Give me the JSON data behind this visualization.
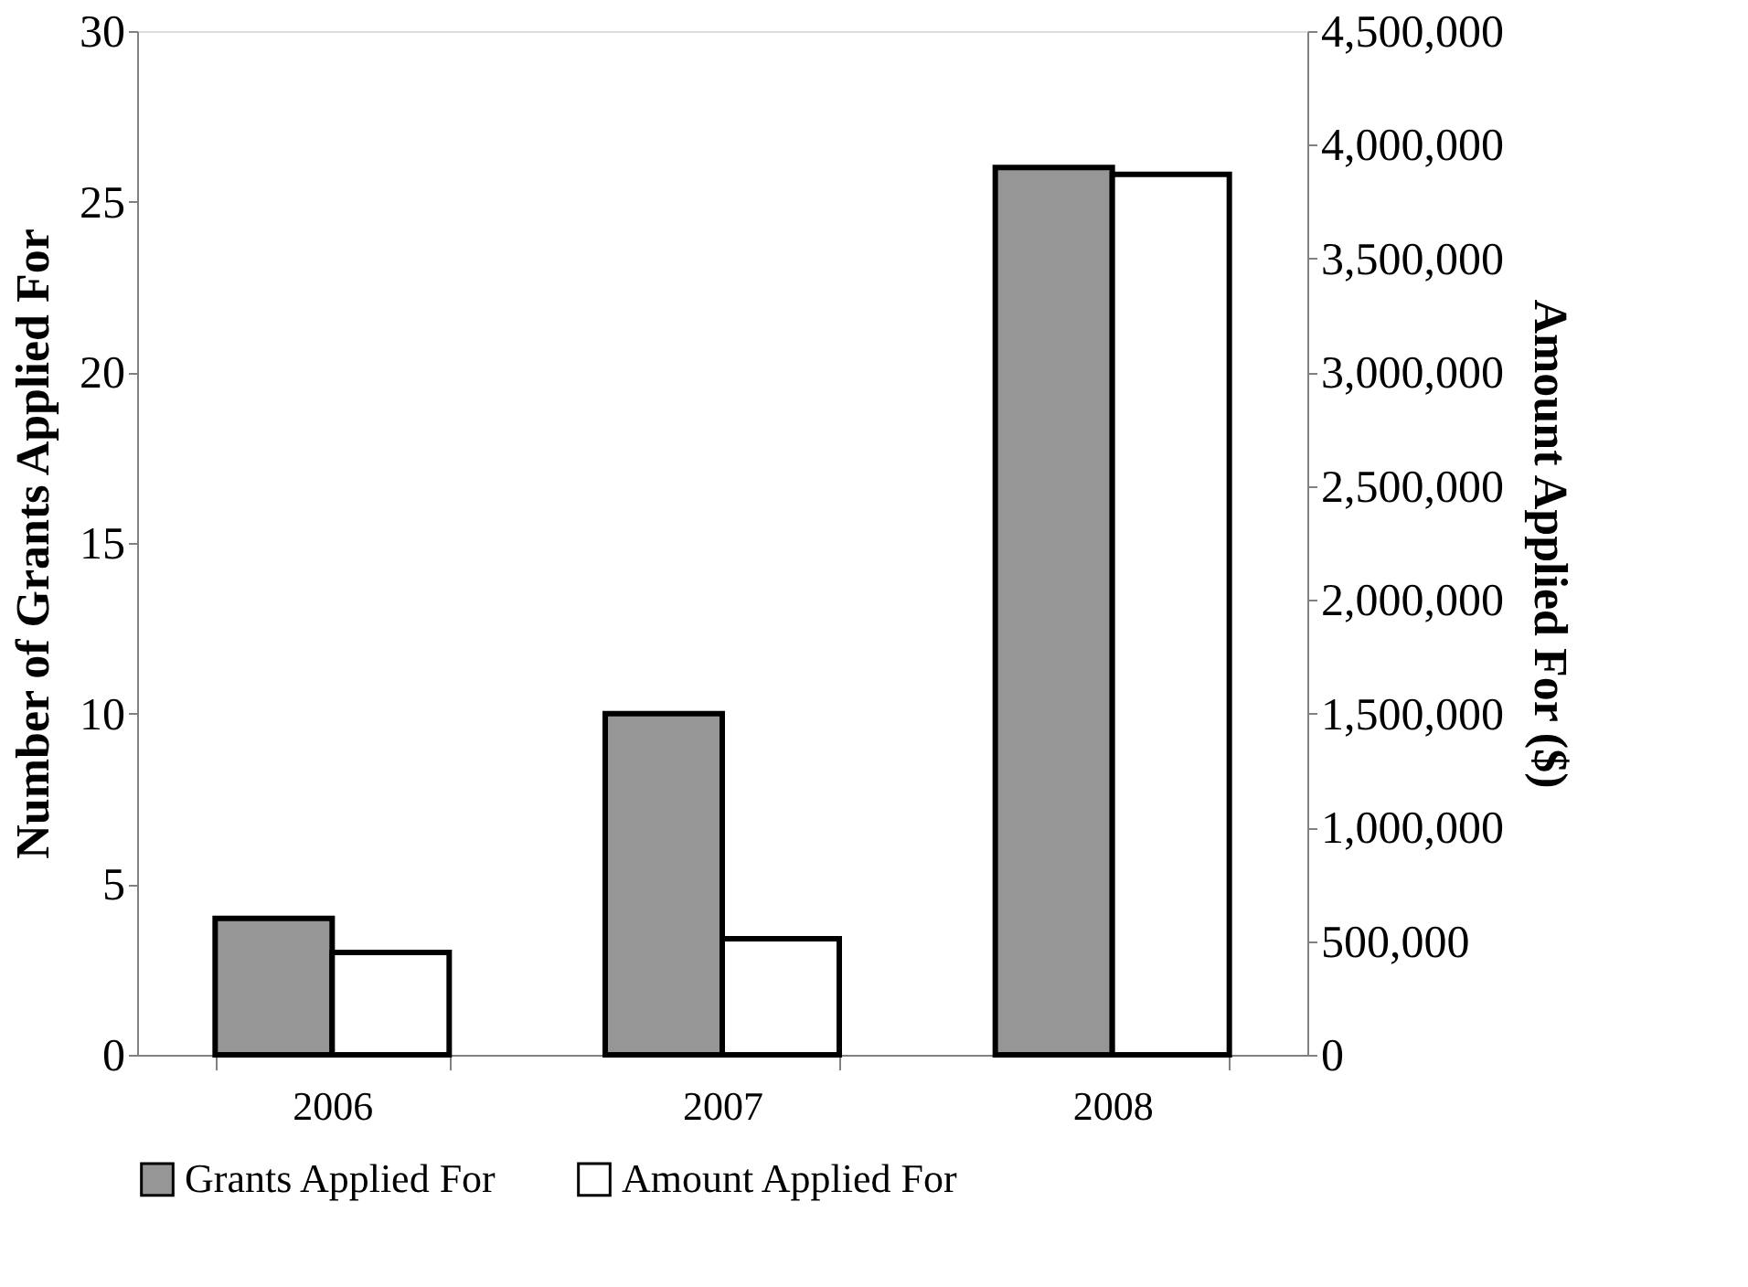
{
  "chart_data": {
    "type": "bar",
    "categories": [
      "2006",
      "2007",
      "2008"
    ],
    "series": [
      {
        "name": "Grants Applied For",
        "color": "#969696",
        "values": [
          4,
          10,
          26
        ]
      },
      {
        "name": "Amount Applied For",
        "color": "#ffffff",
        "values": [
          450000,
          510000,
          3870000
        ],
        "axis": "y2"
      }
    ],
    "ylabel": "Number of Grants Applied For",
    "y2label": "Amount Applied For ($)",
    "ylim": [
      0,
      30
    ],
    "yticks": [
      0,
      5,
      10,
      15,
      20,
      25,
      30
    ],
    "y2lim": [
      0,
      4500000
    ],
    "y2ticks": [
      0,
      {
        "value": 500000,
        "label": "500,000"
      },
      {
        "value": 1000000,
        "label": "1,000,000"
      },
      {
        "value": 1500000,
        "label": "1,500,000"
      },
      {
        "value": 2000000,
        "label": "2,000,000"
      },
      {
        "value": 2500000,
        "label": "2,500,000"
      },
      {
        "value": 3000000,
        "label": "3,000,000"
      },
      {
        "value": 3500000,
        "label": "3,500,000"
      },
      {
        "value": 4000000,
        "label": "4,000,000"
      },
      {
        "value": 4500000,
        "label": "4,500,000"
      }
    ],
    "grid": false,
    "legend": "bottom"
  }
}
